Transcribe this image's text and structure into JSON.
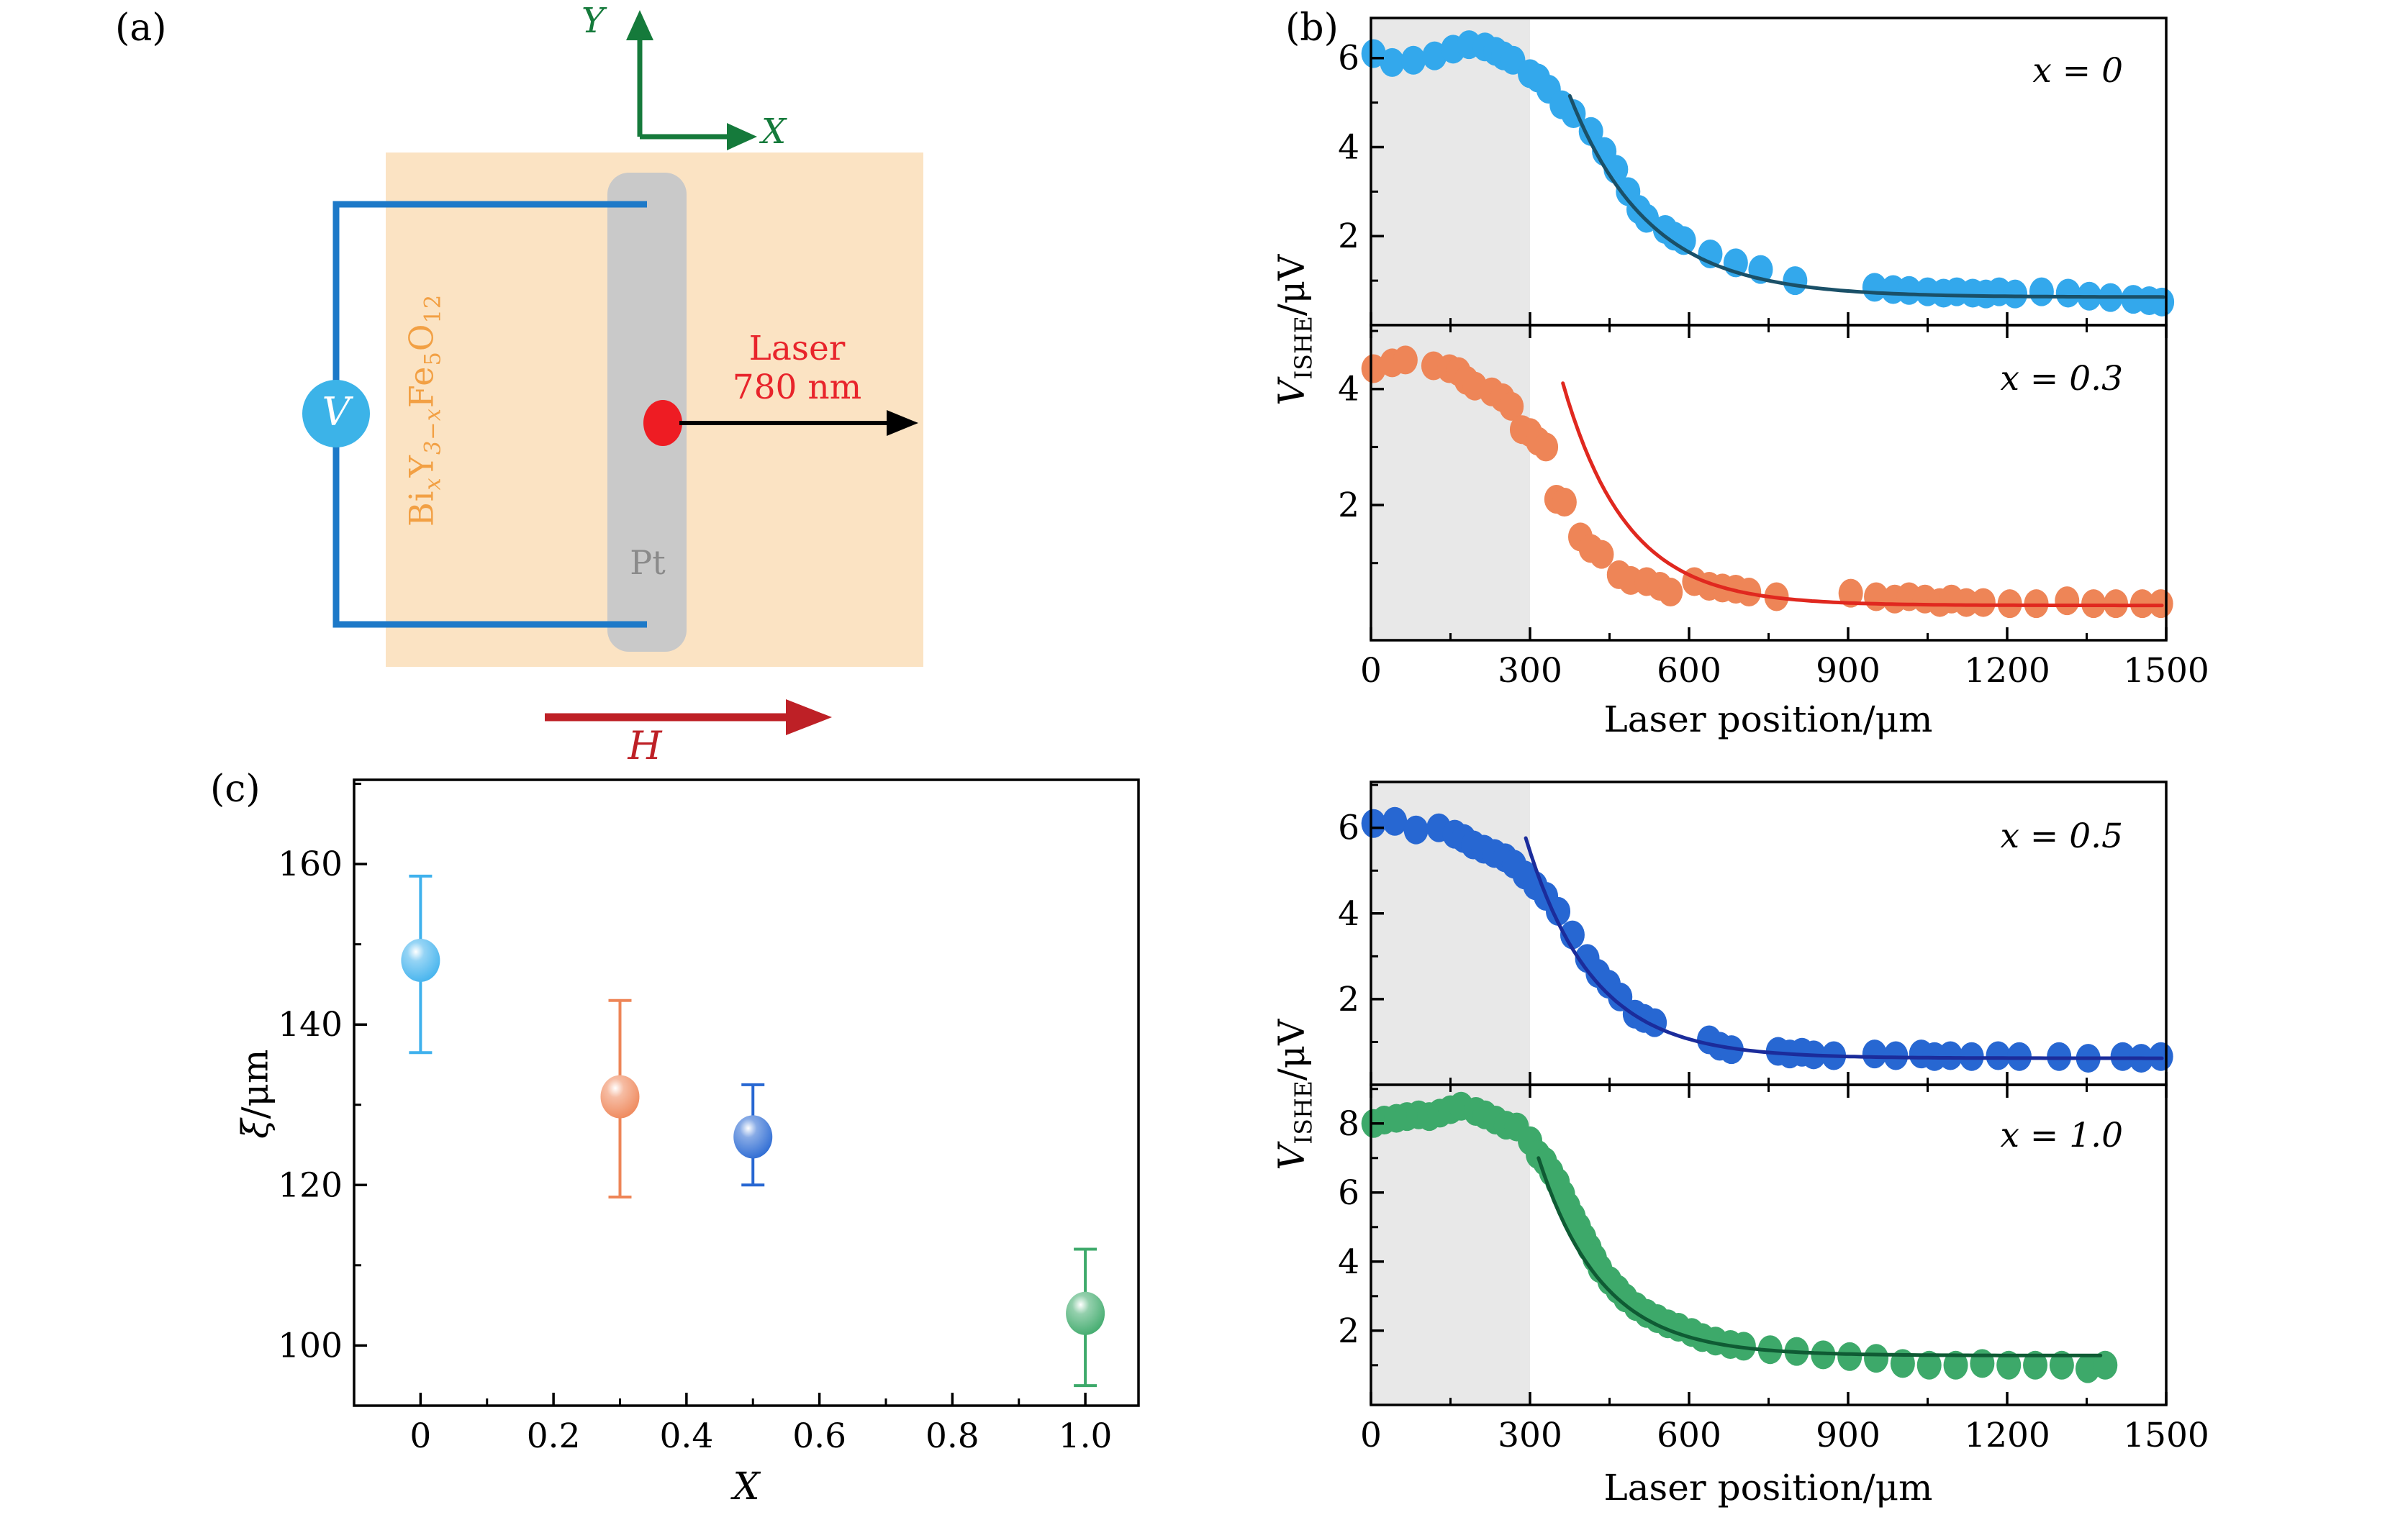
{
  "panels": {
    "a": "(a)",
    "b": "(b)",
    "c": "(c)"
  },
  "colors": {
    "shade": "#E8E8E8"
  },
  "panel_a": {
    "material": {
      "m1": "Bi",
      "s1": "x",
      "m2": "Y",
      "s2": "3−x",
      "m3": "Fe",
      "s3": "5",
      "m4": "O",
      "s4": "12"
    },
    "pt_label": "Pt",
    "voltmeter_label": "V",
    "laser_line1": "Laser",
    "laser_line2": "780 nm",
    "field_label": "H",
    "axis_x": "X",
    "axis_y": "Y",
    "colors": {
      "substrate": "#FBE3C3",
      "pt_strip": "#C9C9C9",
      "wire": "#1D79C8",
      "voltmeter": "#3CB3E8",
      "laser_dot": "#EE1C23",
      "laser_text": "#E8242B",
      "axes": "#157A3B",
      "field": "#BE2026",
      "material_text": "#F2A044",
      "pt_text": "#8A8A8A"
    }
  },
  "axis_labels": {
    "laser_position": "Laser position/μm",
    "v_main": "V",
    "v_sub": "ISHE",
    "v_unit": "/μV",
    "xi_main": "ξ",
    "xi_unit": "/μm",
    "x_title": "X"
  },
  "chart_data": [
    {
      "id": "vishe-x0",
      "type": "scatter",
      "ann_var": "x",
      "ann_rest": " = 0",
      "xlabel": "Laser position/μm",
      "ylabel": "V_ISHE/μV",
      "xlim": [
        0,
        1500
      ],
      "ylim": [
        0,
        6.9
      ],
      "x_ticks": [
        0,
        300,
        600,
        900,
        1200,
        1500
      ],
      "x_tick_labels": [
        "0",
        "300",
        "600",
        "900",
        "1200",
        "1500"
      ],
      "x_ticks_minor": [
        150,
        450,
        750,
        1050,
        1350
      ],
      "y_ticks": [
        2,
        4,
        6
      ],
      "y_ticks_minor": [
        1,
        3,
        5
      ],
      "shaded_x": [
        0,
        300
      ],
      "marker_color": "#33A8EC",
      "fit_color": "#1A5068",
      "fit": {
        "x_start": 375,
        "x_end": 1500,
        "y_start": 5.15,
        "asymptote": 0.63,
        "decay": 150
      },
      "points": [
        [
          5,
          6.1
        ],
        [
          40,
          5.9
        ],
        [
          80,
          5.95
        ],
        [
          120,
          6.05
        ],
        [
          155,
          6.2
        ],
        [
          185,
          6.3
        ],
        [
          215,
          6.25
        ],
        [
          235,
          6.15
        ],
        [
          250,
          6.05
        ],
        [
          268,
          5.95
        ],
        [
          300,
          5.65
        ],
        [
          315,
          5.55
        ],
        [
          335,
          5.3
        ],
        [
          360,
          4.95
        ],
        [
          382,
          4.75
        ],
        [
          415,
          4.35
        ],
        [
          440,
          3.9
        ],
        [
          462,
          3.5
        ],
        [
          485,
          3.0
        ],
        [
          505,
          2.6
        ],
        [
          520,
          2.4
        ],
        [
          555,
          2.15
        ],
        [
          572,
          2.0
        ],
        [
          590,
          1.9
        ],
        [
          640,
          1.6
        ],
        [
          688,
          1.4
        ],
        [
          735,
          1.25
        ],
        [
          800,
          1.0
        ],
        [
          950,
          0.85
        ],
        [
          985,
          0.8
        ],
        [
          1015,
          0.78
        ],
        [
          1050,
          0.75
        ],
        [
          1080,
          0.72
        ],
        [
          1105,
          0.75
        ],
        [
          1135,
          0.72
        ],
        [
          1160,
          0.7
        ],
        [
          1185,
          0.75
        ],
        [
          1215,
          0.7
        ],
        [
          1265,
          0.75
        ],
        [
          1315,
          0.72
        ],
        [
          1355,
          0.65
        ],
        [
          1395,
          0.62
        ],
        [
          1438,
          0.58
        ],
        [
          1468,
          0.55
        ],
        [
          1492,
          0.52
        ]
      ]
    },
    {
      "id": "vishe-x03",
      "type": "scatter",
      "ann_var": "x",
      "ann_rest": " = 0.3",
      "xlabel": "Laser position/μm",
      "ylabel": "V_ISHE/μV",
      "xlim": [
        0,
        1500
      ],
      "ylim": [
        -0.33,
        5.1
      ],
      "x_ticks": [
        0,
        300,
        600,
        900,
        1200,
        1500
      ],
      "x_tick_labels": [
        "0",
        "300",
        "600",
        "900",
        "1200",
        "1500"
      ],
      "x_ticks_minor": [
        150,
        450,
        750,
        1050,
        1350
      ],
      "y_ticks": [
        2,
        4
      ],
      "y_ticks_minor": [
        1,
        3,
        5
      ],
      "shaded_x": [
        0,
        300
      ],
      "marker_color": "#EE8557",
      "fit_color": "#E0281F",
      "fit": {
        "x_start": 362,
        "x_end": 1500,
        "y_start": 4.1,
        "asymptote": 0.27,
        "decay": 120
      },
      "points": [
        [
          5,
          4.35
        ],
        [
          40,
          4.45
        ],
        [
          65,
          4.5
        ],
        [
          118,
          4.4
        ],
        [
          148,
          4.35
        ],
        [
          165,
          4.3
        ],
        [
          180,
          4.15
        ],
        [
          196,
          4.05
        ],
        [
          228,
          3.95
        ],
        [
          248,
          3.85
        ],
        [
          265,
          3.7
        ],
        [
          285,
          3.3
        ],
        [
          300,
          3.25
        ],
        [
          315,
          3.1
        ],
        [
          330,
          3.0
        ],
        [
          350,
          2.1
        ],
        [
          365,
          2.05
        ],
        [
          395,
          1.45
        ],
        [
          415,
          1.25
        ],
        [
          435,
          1.15
        ],
        [
          468,
          0.8
        ],
        [
          490,
          0.7
        ],
        [
          520,
          0.68
        ],
        [
          545,
          0.6
        ],
        [
          565,
          0.5
        ],
        [
          610,
          0.68
        ],
        [
          638,
          0.6
        ],
        [
          663,
          0.57
        ],
        [
          688,
          0.55
        ],
        [
          713,
          0.5
        ],
        [
          765,
          0.42
        ],
        [
          905,
          0.48
        ],
        [
          953,
          0.42
        ],
        [
          988,
          0.38
        ],
        [
          1015,
          0.42
        ],
        [
          1045,
          0.38
        ],
        [
          1073,
          0.32
        ],
        [
          1095,
          0.38
        ],
        [
          1123,
          0.32
        ],
        [
          1155,
          0.32
        ],
        [
          1205,
          0.3
        ],
        [
          1255,
          0.3
        ],
        [
          1313,
          0.35
        ],
        [
          1363,
          0.3
        ],
        [
          1405,
          0.3
        ],
        [
          1455,
          0.3
        ],
        [
          1490,
          0.3
        ]
      ]
    },
    {
      "id": "vishe-x05",
      "type": "scatter",
      "ann_var": "x",
      "ann_rest": " = 0.5",
      "xlabel": "Laser position/μm",
      "ylabel": "V_ISHE/μV",
      "xlim": [
        0,
        1500
      ],
      "ylim": [
        0,
        7.07
      ],
      "x_ticks": [
        0,
        300,
        600,
        900,
        1200,
        1500
      ],
      "x_tick_labels": [
        "0",
        "300",
        "600",
        "900",
        "1200",
        "1500"
      ],
      "x_ticks_minor": [
        150,
        450,
        750,
        1050,
        1350
      ],
      "y_ticks": [
        2,
        4,
        6
      ],
      "y_ticks_minor": [
        1,
        3,
        5,
        7
      ],
      "shaded_x": [
        0,
        300
      ],
      "marker_color": "#2767D2",
      "fit_color": "#1B2C9B",
      "fit": {
        "x_start": 292,
        "x_end": 1500,
        "y_start": 5.76,
        "asymptote": 0.62,
        "decay": 126
      },
      "points": [
        [
          5,
          6.1
        ],
        [
          45,
          6.15
        ],
        [
          85,
          5.95
        ],
        [
          128,
          6.0
        ],
        [
          158,
          5.85
        ],
        [
          175,
          5.75
        ],
        [
          193,
          5.6
        ],
        [
          213,
          5.5
        ],
        [
          233,
          5.4
        ],
        [
          253,
          5.3
        ],
        [
          270,
          5.15
        ],
        [
          290,
          4.9
        ],
        [
          310,
          4.65
        ],
        [
          330,
          4.4
        ],
        [
          353,
          4.05
        ],
        [
          380,
          3.5
        ],
        [
          408,
          2.95
        ],
        [
          428,
          2.6
        ],
        [
          448,
          2.35
        ],
        [
          470,
          2.05
        ],
        [
          498,
          1.65
        ],
        [
          515,
          1.55
        ],
        [
          535,
          1.45
        ],
        [
          638,
          1.05
        ],
        [
          658,
          0.9
        ],
        [
          680,
          0.82
        ],
        [
          768,
          0.78
        ],
        [
          790,
          0.72
        ],
        [
          813,
          0.76
        ],
        [
          835,
          0.7
        ],
        [
          873,
          0.68
        ],
        [
          950,
          0.72
        ],
        [
          990,
          0.68
        ],
        [
          1038,
          0.72
        ],
        [
          1063,
          0.66
        ],
        [
          1093,
          0.68
        ],
        [
          1133,
          0.66
        ],
        [
          1183,
          0.68
        ],
        [
          1223,
          0.66
        ],
        [
          1298,
          0.66
        ],
        [
          1353,
          0.62
        ],
        [
          1418,
          0.66
        ],
        [
          1453,
          0.62
        ],
        [
          1490,
          0.66
        ]
      ]
    },
    {
      "id": "vishe-x10",
      "type": "scatter",
      "ann_var": "x",
      "ann_rest": " = 1.0",
      "xlabel": "Laser position/μm",
      "ylabel": "V_ISHE/μV",
      "xlim": [
        0,
        1500
      ],
      "ylim": [
        -0.15,
        9.12
      ],
      "x_ticks": [
        0,
        300,
        600,
        900,
        1200,
        1500
      ],
      "x_tick_labels": [
        "0",
        "300",
        "600",
        "900",
        "1200",
        "1500"
      ],
      "x_ticks_minor": [
        150,
        450,
        750,
        1050,
        1350
      ],
      "y_ticks": [
        2,
        4,
        6,
        8
      ],
      "y_ticks_minor": [
        1,
        3,
        5,
        7,
        9
      ],
      "shaded_x": [
        0,
        300
      ],
      "marker_color": "#3DA96A",
      "fit_color": "#0F5B34",
      "fit": {
        "x_start": 316,
        "x_end": 1380,
        "y_start": 7.0,
        "asymptote": 1.28,
        "decay": 120
      },
      "points": [
        [
          5,
          8.0
        ],
        [
          25,
          8.1
        ],
        [
          48,
          8.15
        ],
        [
          68,
          8.2
        ],
        [
          90,
          8.25
        ],
        [
          110,
          8.2
        ],
        [
          130,
          8.3
        ],
        [
          150,
          8.4
        ],
        [
          170,
          8.5
        ],
        [
          198,
          8.35
        ],
        [
          215,
          8.25
        ],
        [
          235,
          8.1
        ],
        [
          255,
          7.95
        ],
        [
          275,
          7.9
        ],
        [
          300,
          7.5
        ],
        [
          315,
          7.1
        ],
        [
          328,
          6.9
        ],
        [
          340,
          6.6
        ],
        [
          352,
          6.3
        ],
        [
          362,
          5.95
        ],
        [
          372,
          5.6
        ],
        [
          382,
          5.3
        ],
        [
          392,
          5.0
        ],
        [
          402,
          4.7
        ],
        [
          412,
          4.4
        ],
        [
          422,
          4.1
        ],
        [
          432,
          3.8
        ],
        [
          450,
          3.45
        ],
        [
          465,
          3.2
        ],
        [
          480,
          2.95
        ],
        [
          500,
          2.7
        ],
        [
          520,
          2.5
        ],
        [
          540,
          2.35
        ],
        [
          560,
          2.2
        ],
        [
          580,
          2.1
        ],
        [
          605,
          1.95
        ],
        [
          625,
          1.8
        ],
        [
          650,
          1.7
        ],
        [
          678,
          1.6
        ],
        [
          703,
          1.55
        ],
        [
          753,
          1.45
        ],
        [
          803,
          1.4
        ],
        [
          853,
          1.3
        ],
        [
          903,
          1.25
        ],
        [
          953,
          1.2
        ],
        [
          1003,
          1.05
        ],
        [
          1053,
          1.0
        ],
        [
          1103,
          1.0
        ],
        [
          1153,
          1.05
        ],
        [
          1203,
          1.0
        ],
        [
          1253,
          1.0
        ],
        [
          1303,
          1.0
        ],
        [
          1352,
          0.9
        ],
        [
          1385,
          1.0
        ]
      ]
    },
    {
      "id": "xi-vs-x",
      "type": "scatter-errorbar",
      "xlabel": "X",
      "ylabel": "ξ/μm",
      "xlim": [
        -0.1,
        1.08
      ],
      "ylim": [
        92.5,
        170.5
      ],
      "x_ticks": [
        0,
        0.2,
        0.4,
        0.6,
        0.8,
        1.0
      ],
      "x_tick_labels": [
        "0",
        "0.2",
        "0.4",
        "0.6",
        "0.8",
        "1.0"
      ],
      "x_ticks_minor": [
        0.1,
        0.3,
        0.5,
        0.7,
        0.9
      ],
      "y_ticks": [
        100,
        120,
        140,
        160
      ],
      "y_ticks_minor": [
        110,
        130,
        150,
        170
      ],
      "points": [
        {
          "x": 0,
          "y": 148,
          "err_up": 10.5,
          "err_down": 11.5,
          "color": "#3FB1ED"
        },
        {
          "x": 0.3,
          "y": 131,
          "err_up": 12,
          "err_down": 12.5,
          "color": "#EE8557"
        },
        {
          "x": 0.5,
          "y": 126,
          "err_up": 6.5,
          "err_down": 6,
          "color": "#2767D2"
        },
        {
          "x": 1.0,
          "y": 104,
          "err_up": 8,
          "err_down": 9,
          "color": "#3DA96A"
        }
      ]
    }
  ]
}
